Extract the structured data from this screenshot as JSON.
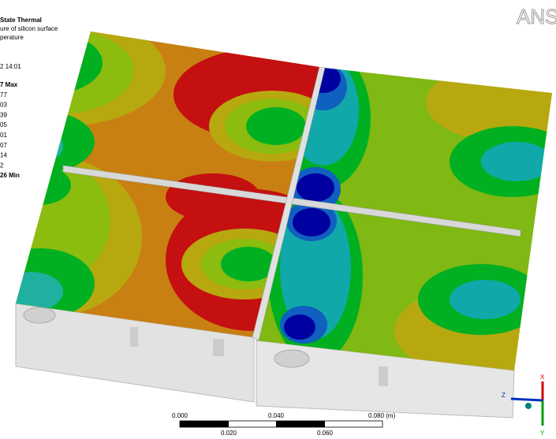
{
  "header": {
    "lines": [
      "State Thermal",
      "ure of silicon surface",
      "perature",
      "2 14:01"
    ]
  },
  "legend": {
    "labels": [
      "7 Max",
      "77",
      "03",
      "39",
      "05",
      "01",
      "07",
      "14",
      "2",
      "26 Min"
    ]
  },
  "logo": "ANS",
  "scale_bar": {
    "top_labels": [
      "0.000",
      "0.040",
      "0.080 (m)"
    ],
    "bottom_labels": [
      "0.020",
      "0.060"
    ]
  },
  "triad": {
    "x": "X",
    "y": "Y",
    "z": "Z"
  }
}
